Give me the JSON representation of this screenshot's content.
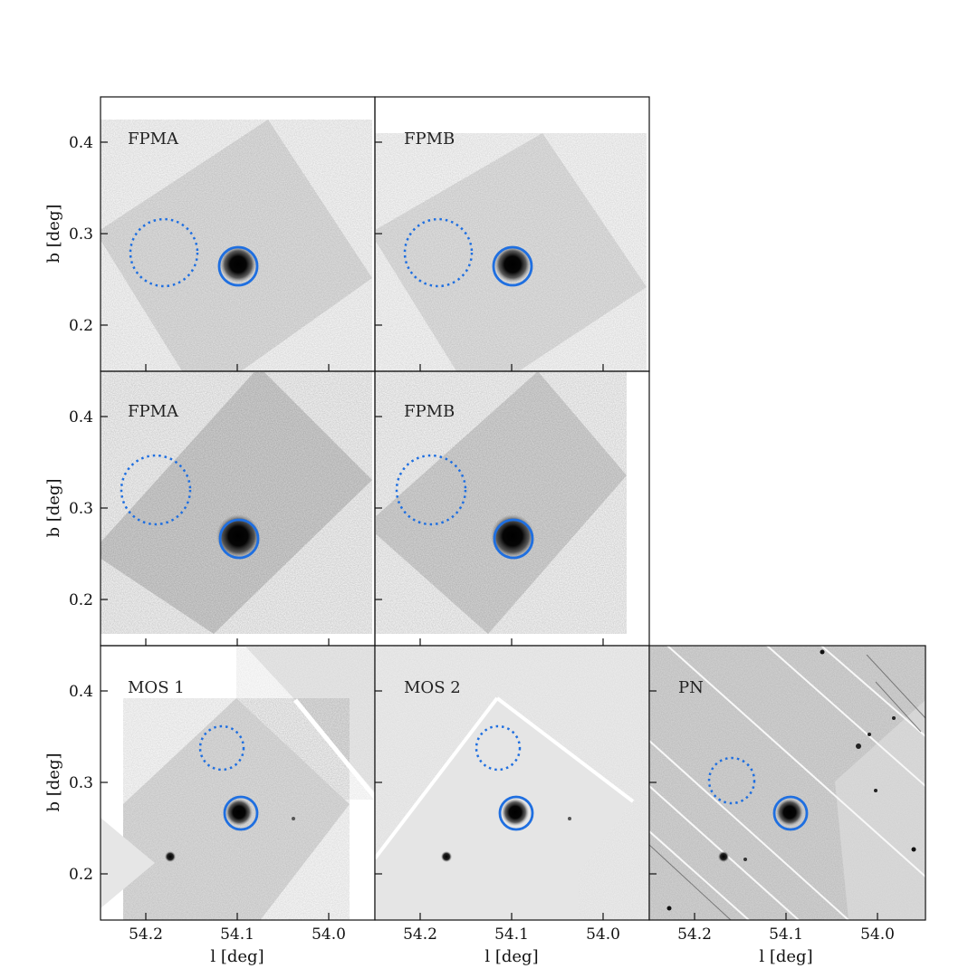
{
  "figure": {
    "x_axis_label": "l [deg]",
    "y_axis_label": "b [deg]",
    "x_range": [
      54.25,
      53.95
    ],
    "y_range": [
      0.15,
      0.45
    ],
    "x_ticks": [
      54.2,
      54.1,
      54.0
    ],
    "x_tick_labels": [
      "54.2",
      "54.1",
      "54.0"
    ],
    "y_ticks": [
      0.2,
      0.3,
      0.4
    ],
    "y_tick_labels": [
      "0.2",
      "0.3",
      "0.4"
    ],
    "source_color": "#1f6fe0",
    "background_color": "#1f6fe0"
  },
  "panels": [
    {
      "label": "FPMA",
      "row": 0,
      "col": 0,
      "instrument": "nustar",
      "source": {
        "l": 54.1,
        "b": 0.265
      },
      "background": {
        "l": 54.21,
        "b": 0.28
      }
    },
    {
      "label": "FPMB",
      "row": 0,
      "col": 1,
      "instrument": "nustar",
      "source": {
        "l": 54.1,
        "b": 0.265
      },
      "background": {
        "l": 54.21,
        "b": 0.28
      }
    },
    {
      "label": "FPMA",
      "row": 1,
      "col": 0,
      "instrument": "nustar",
      "source": {
        "l": 54.1,
        "b": 0.265
      },
      "background": {
        "l": 54.22,
        "b": 0.32
      }
    },
    {
      "label": "FPMB",
      "row": 1,
      "col": 1,
      "instrument": "nustar",
      "source": {
        "l": 54.1,
        "b": 0.265
      },
      "background": {
        "l": 54.22,
        "b": 0.32
      }
    },
    {
      "label": "MOS 1",
      "row": 2,
      "col": 0,
      "instrument": "mos",
      "source": {
        "l": 54.1,
        "b": 0.265
      },
      "background": {
        "l": 54.15,
        "b": 0.34
      }
    },
    {
      "label": "MOS 2",
      "row": 2,
      "col": 1,
      "instrument": "mos",
      "source": {
        "l": 54.1,
        "b": 0.265
      },
      "background": {
        "l": 54.15,
        "b": 0.34
      }
    },
    {
      "label": "PN",
      "row": 2,
      "col": 2,
      "instrument": "pn",
      "source": {
        "l": 54.1,
        "b": 0.265
      },
      "background": {
        "l": 54.16,
        "b": 0.3
      }
    }
  ]
}
